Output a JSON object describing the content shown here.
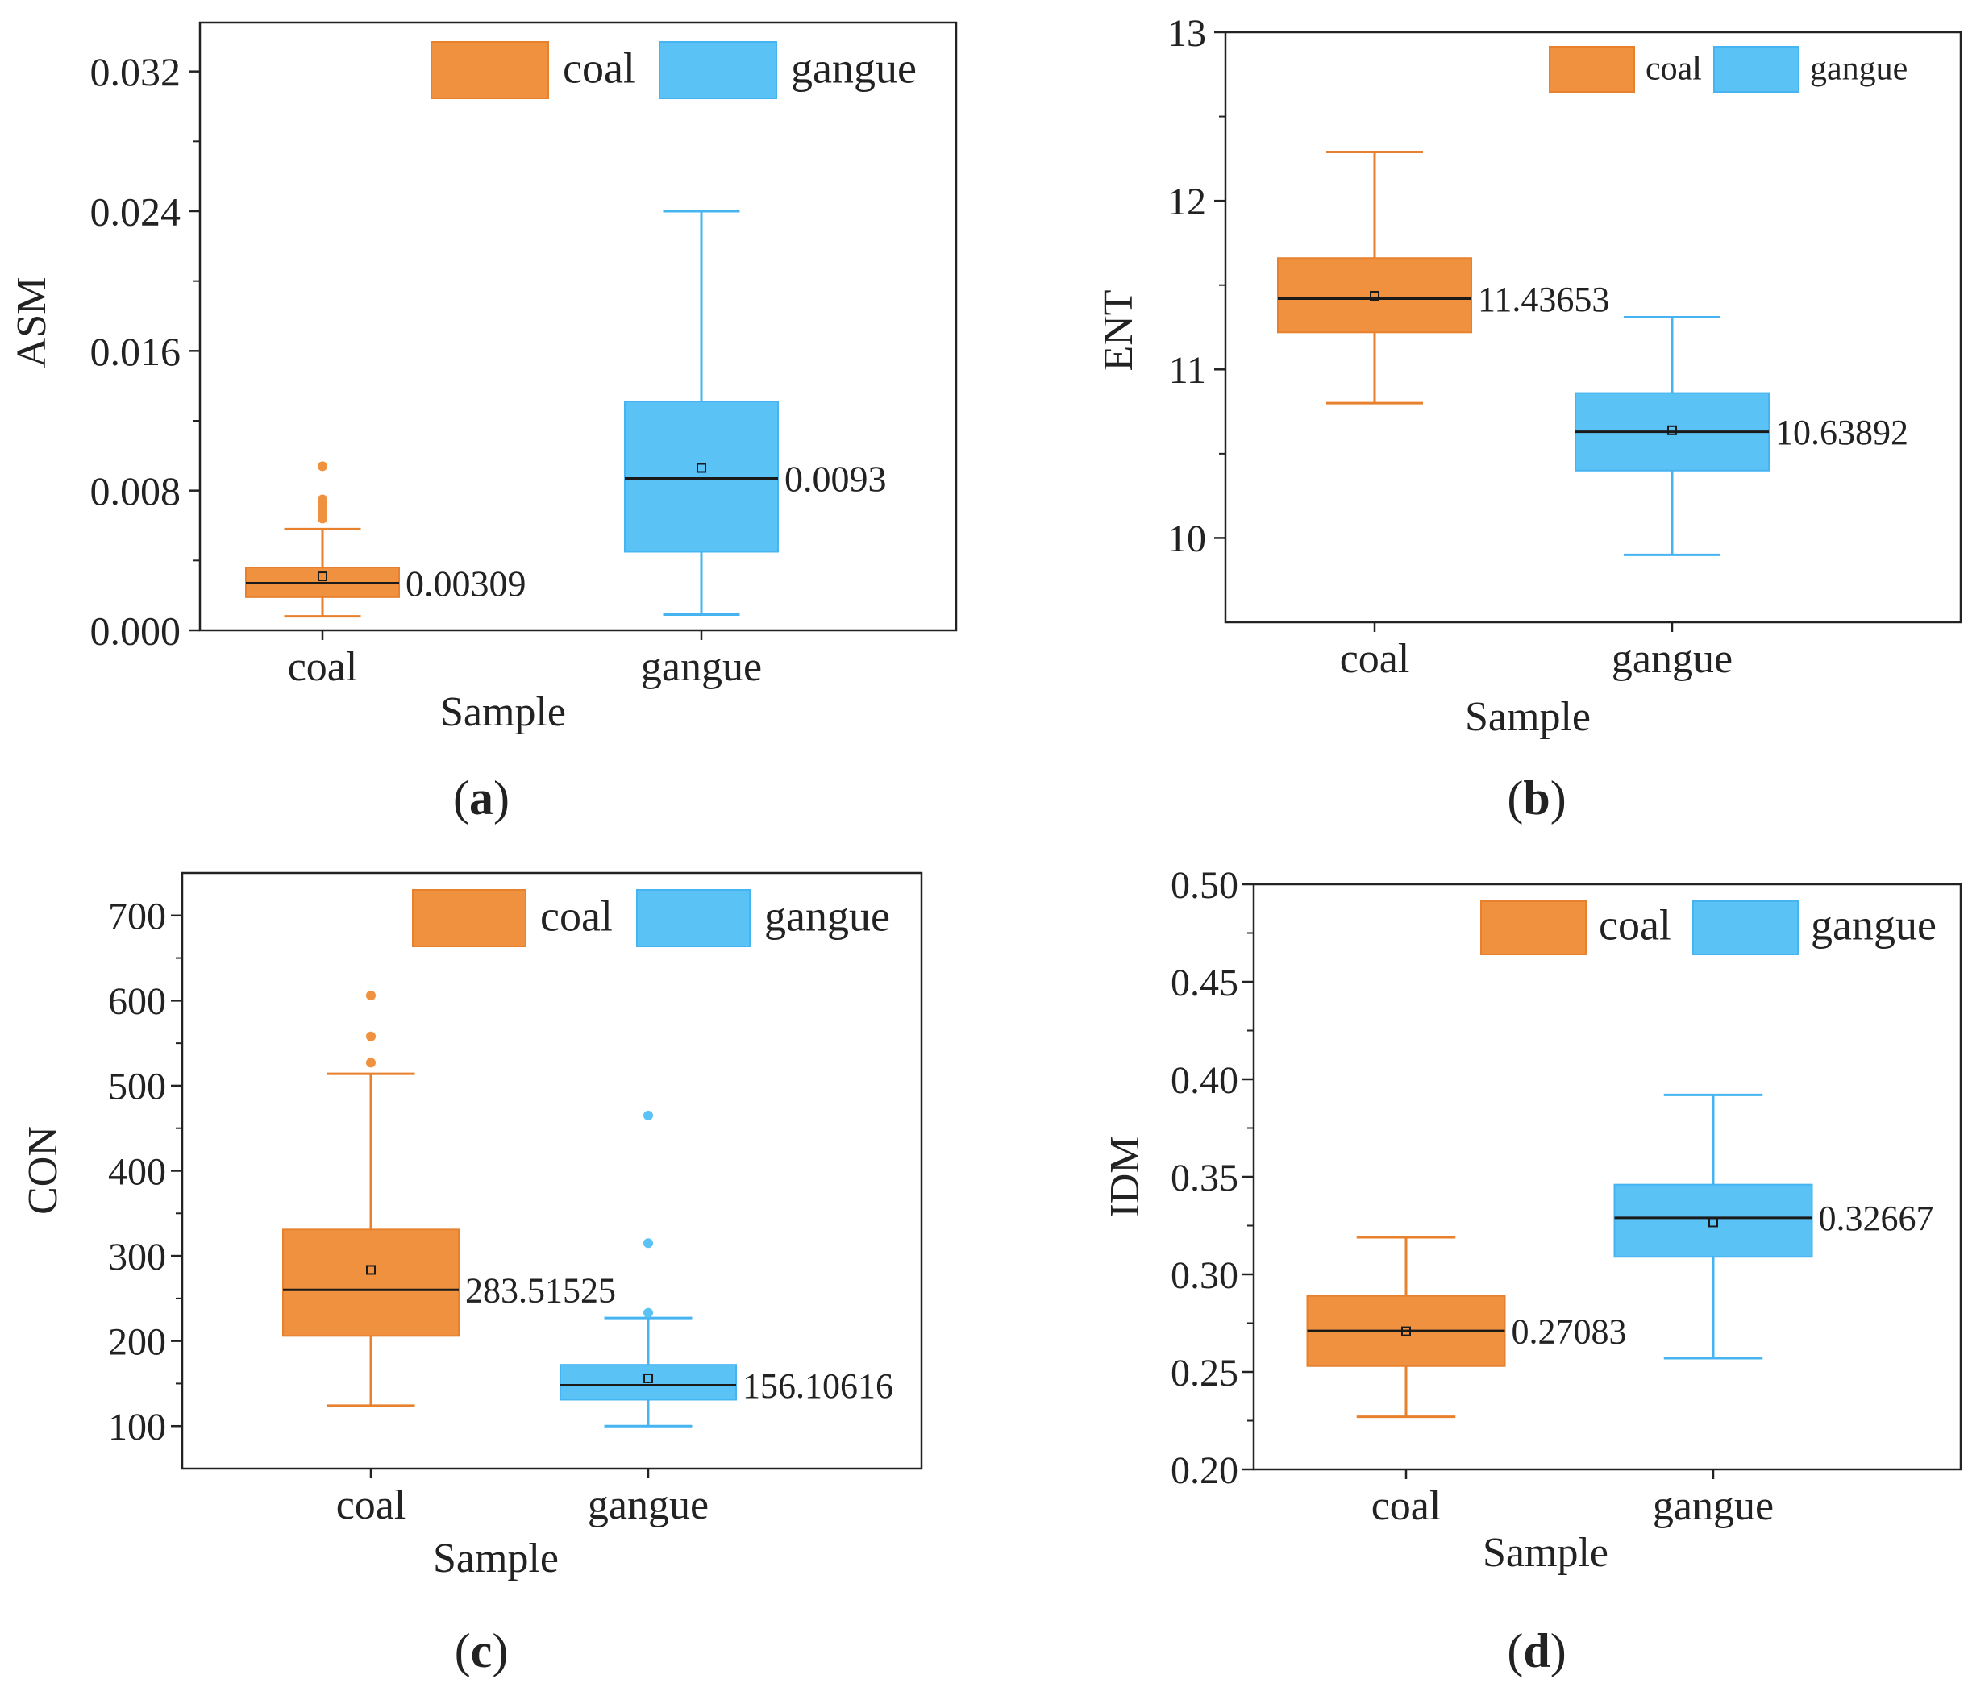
{
  "colors": {
    "coal": "#F0913F",
    "gangue": "#5BC2F5",
    "coal_dark": "#E7812D",
    "gangue_dark": "#45B4F0",
    "axis": "#222222",
    "median": "#1a1a1a"
  },
  "chart_data": [
    {
      "type": "box",
      "panel_label": "a",
      "xlabel": "Sample",
      "ylabel": "ASM",
      "ylim": [
        0,
        0.0348
      ],
      "yticks": [
        0,
        0.008,
        0.016,
        0.024,
        0.032
      ],
      "ytick_labels": [
        "0.000",
        "0.008",
        "0.016",
        "0.024",
        "0.032"
      ],
      "categories": [
        "coal",
        "gangue"
      ],
      "legend": [
        "coal",
        "gangue"
      ],
      "legend_position": "top-right",
      "boxes": [
        {
          "name": "coal",
          "whisker_low": 0.0008,
          "q1": 0.0019,
          "median": 0.0027,
          "q3": 0.0036,
          "whisker_high": 0.0058,
          "mean": 0.00309,
          "mean_label": "0.00309",
          "outliers": [
            0.0064,
            0.0067,
            0.007,
            0.0072,
            0.0075,
            0.0094
          ]
        },
        {
          "name": "gangue",
          "whisker_low": 0.0009,
          "q1": 0.0045,
          "median": 0.0087,
          "q3": 0.0131,
          "whisker_high": 0.024,
          "mean": 0.0093,
          "mean_label": "0.0093",
          "outliers": []
        }
      ]
    },
    {
      "type": "box",
      "panel_label": "b",
      "xlabel": "Sample",
      "ylabel": "ENT",
      "ylim": [
        9.5,
        13
      ],
      "yticks": [
        10,
        11,
        12,
        13
      ],
      "ytick_labels": [
        "10",
        "11",
        "12",
        "13"
      ],
      "categories": [
        "coal",
        "gangue"
      ],
      "legend": [
        "coal",
        "gangue"
      ],
      "legend_position": "top-right",
      "boxes": [
        {
          "name": "coal",
          "whisker_low": 10.8,
          "q1": 11.22,
          "median": 11.42,
          "q3": 11.66,
          "whisker_high": 12.29,
          "mean": 11.43653,
          "mean_label": "11.43653",
          "outliers": []
        },
        {
          "name": "gangue",
          "whisker_low": 9.9,
          "q1": 10.4,
          "median": 10.63,
          "q3": 10.86,
          "whisker_high": 11.31,
          "mean": 10.63892,
          "mean_label": "10.63892",
          "outliers": []
        }
      ]
    },
    {
      "type": "box",
      "panel_label": "c",
      "xlabel": "Sample",
      "ylabel": "CON",
      "ylim": [
        50,
        750
      ],
      "yticks": [
        100,
        200,
        300,
        400,
        500,
        600,
        700
      ],
      "ytick_labels": [
        "100",
        "200",
        "300",
        "400",
        "500",
        "600",
        "700"
      ],
      "categories": [
        "coal",
        "gangue"
      ],
      "legend": [
        "coal",
        "gangue"
      ],
      "legend_position": "top-right",
      "boxes": [
        {
          "name": "coal",
          "whisker_low": 124,
          "q1": 206,
          "median": 260,
          "q3": 331,
          "whisker_high": 514,
          "mean": 283.51525,
          "mean_label": "283.51525",
          "outliers": [
            527,
            558,
            606
          ]
        },
        {
          "name": "gangue",
          "whisker_low": 100,
          "q1": 131,
          "median": 148,
          "q3": 172,
          "whisker_high": 227,
          "mean": 156.10616,
          "mean_label": "156.10616",
          "outliers": [
            233,
            315,
            465
          ]
        }
      ]
    },
    {
      "type": "box",
      "panel_label": "d",
      "xlabel": "Sample",
      "ylabel": "IDM",
      "ylim": [
        0.2,
        0.5
      ],
      "yticks": [
        0.2,
        0.25,
        0.3,
        0.35,
        0.4,
        0.45,
        0.5
      ],
      "ytick_labels": [
        "0.20",
        "0.25",
        "0.30",
        "0.35",
        "0.40",
        "0.45",
        "0.50"
      ],
      "categories": [
        "coal",
        "gangue"
      ],
      "legend": [
        "coal",
        "gangue"
      ],
      "legend_position": "top-right",
      "boxes": [
        {
          "name": "coal",
          "whisker_low": 0.227,
          "q1": 0.253,
          "median": 0.271,
          "q3": 0.289,
          "whisker_high": 0.319,
          "mean": 0.27083,
          "mean_label": "0.27083",
          "outliers": []
        },
        {
          "name": "gangue",
          "whisker_low": 0.257,
          "q1": 0.309,
          "median": 0.329,
          "q3": 0.346,
          "whisker_high": 0.392,
          "mean": 0.32667,
          "mean_label": "0.32667",
          "outliers": []
        }
      ]
    }
  ]
}
